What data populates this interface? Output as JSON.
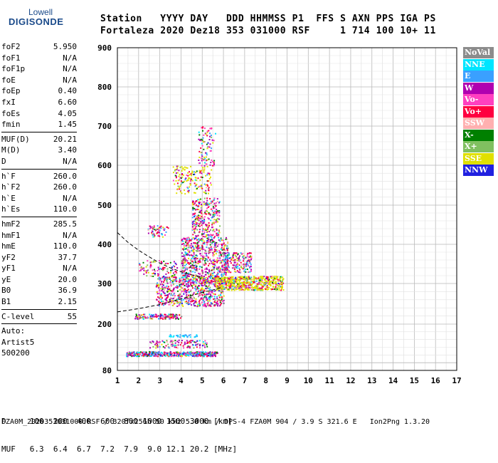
{
  "logo": {
    "lowell": "Lowell",
    "digisonde": "DIGISONDE"
  },
  "header": {
    "line1": "Station   YYYY DAY   DDD HHMMSS P1  FFS S AXN PPS IGA PS",
    "line2": "Fortaleza 2020 Dez18 353 031000 RSF     1 714 100 10+ 11"
  },
  "params": {
    "group1": [
      {
        "label": "foF2",
        "value": "5.950"
      },
      {
        "label": "foF1",
        "value": "N/A"
      },
      {
        "label": "foF1p",
        "value": "N/A"
      },
      {
        "label": "foE",
        "value": "N/A"
      },
      {
        "label": "foEp",
        "value": "0.40"
      },
      {
        "label": "fxI",
        "value": "6.60"
      },
      {
        "label": "foEs",
        "value": "4.05"
      },
      {
        "label": "fmin",
        "value": "1.45"
      }
    ],
    "group2": [
      {
        "label": "MUF(D)",
        "value": "20.21"
      },
      {
        "label": "M(D)",
        "value": "3.40"
      },
      {
        "label": "D",
        "value": "N/A"
      }
    ],
    "group3": [
      {
        "label": "h`F",
        "value": "260.0"
      },
      {
        "label": "h`F2",
        "value": "260.0"
      },
      {
        "label": "h`E",
        "value": "N/A"
      },
      {
        "label": "h`Es",
        "value": "110.0"
      }
    ],
    "group4": [
      {
        "label": "hmF2",
        "value": "285.5"
      },
      {
        "label": "hmF1",
        "value": "N/A"
      },
      {
        "label": "hmE",
        "value": "110.0"
      },
      {
        "label": "yF2",
        "value": "37.7"
      },
      {
        "label": "yF1",
        "value": "N/A"
      },
      {
        "label": "yE",
        "value": "20.0"
      },
      {
        "label": "B0",
        "value": "36.9"
      },
      {
        "label": "B1",
        "value": "2.15"
      }
    ],
    "group5": [
      {
        "label": "C-level",
        "value": "55"
      }
    ],
    "auto": [
      "Auto:",
      "Artist5",
      "500200"
    ]
  },
  "legend": [
    {
      "label": "NoVal",
      "color": "#8c8c8c"
    },
    {
      "label": "NNE",
      "color": "#00e5ff"
    },
    {
      "label": "E",
      "color": "#3aa0ff"
    },
    {
      "label": "W",
      "color": "#b000b0"
    },
    {
      "label": "Vo-",
      "color": "#ff40c0"
    },
    {
      "label": "Vo+",
      "color": "#ff0040"
    },
    {
      "label": "SSW",
      "color": "#ffb0b0"
    },
    {
      "label": "X-",
      "color": "#008000"
    },
    {
      "label": "X+",
      "color": "#80c060"
    },
    {
      "label": "SSE",
      "color": "#e0e000"
    },
    {
      "label": "NNW",
      "color": "#2020e0"
    }
  ],
  "chart_data": {
    "type": "scatter",
    "title": "",
    "xlabel": "",
    "ylabel": "",
    "xlim": [
      1,
      17
    ],
    "ylim": [
      80,
      900
    ],
    "x_ticks": [
      1,
      2,
      3,
      4,
      5,
      6,
      7,
      8,
      9,
      10,
      11,
      12,
      13,
      14,
      15,
      16,
      17
    ],
    "y_ticks": [
      80,
      200,
      300,
      400,
      500,
      600,
      700,
      800,
      900
    ],
    "grid": true,
    "legend_position": "right",
    "traces": [
      {
        "points": [
          [
            1.0,
            430
          ],
          [
            1.5,
            405
          ],
          [
            2.0,
            385
          ],
          [
            2.5,
            368
          ],
          [
            3.0,
            352
          ],
          [
            3.5,
            340
          ],
          [
            4.0,
            330
          ],
          [
            4.5,
            322
          ],
          [
            5.0,
            316
          ]
        ]
      },
      {
        "points": [
          [
            1.0,
            230
          ],
          [
            2.0,
            238
          ],
          [
            3.0,
            248
          ],
          [
            3.5,
            255
          ],
          [
            4.0,
            262
          ],
          [
            4.5,
            270
          ],
          [
            5.0,
            278
          ],
          [
            5.5,
            284
          ],
          [
            5.9,
            290
          ]
        ]
      }
    ]
  },
  "footer": {
    "d_row": "D     100  200  400  600  800 1000 1500 3000 [km]",
    "muf_row": "MUF   6.3  6.4  6.7  7.2  7.9  9.0 12.1 20.2 [MHz]",
    "file_line": "FZA0M_2020353031000.RSF / 320fx256h 50 kHz 5.0 km / DPS-4 FZA0M 904 / 3.9 S 321.6 E   Ion2Png 1.3.20"
  }
}
